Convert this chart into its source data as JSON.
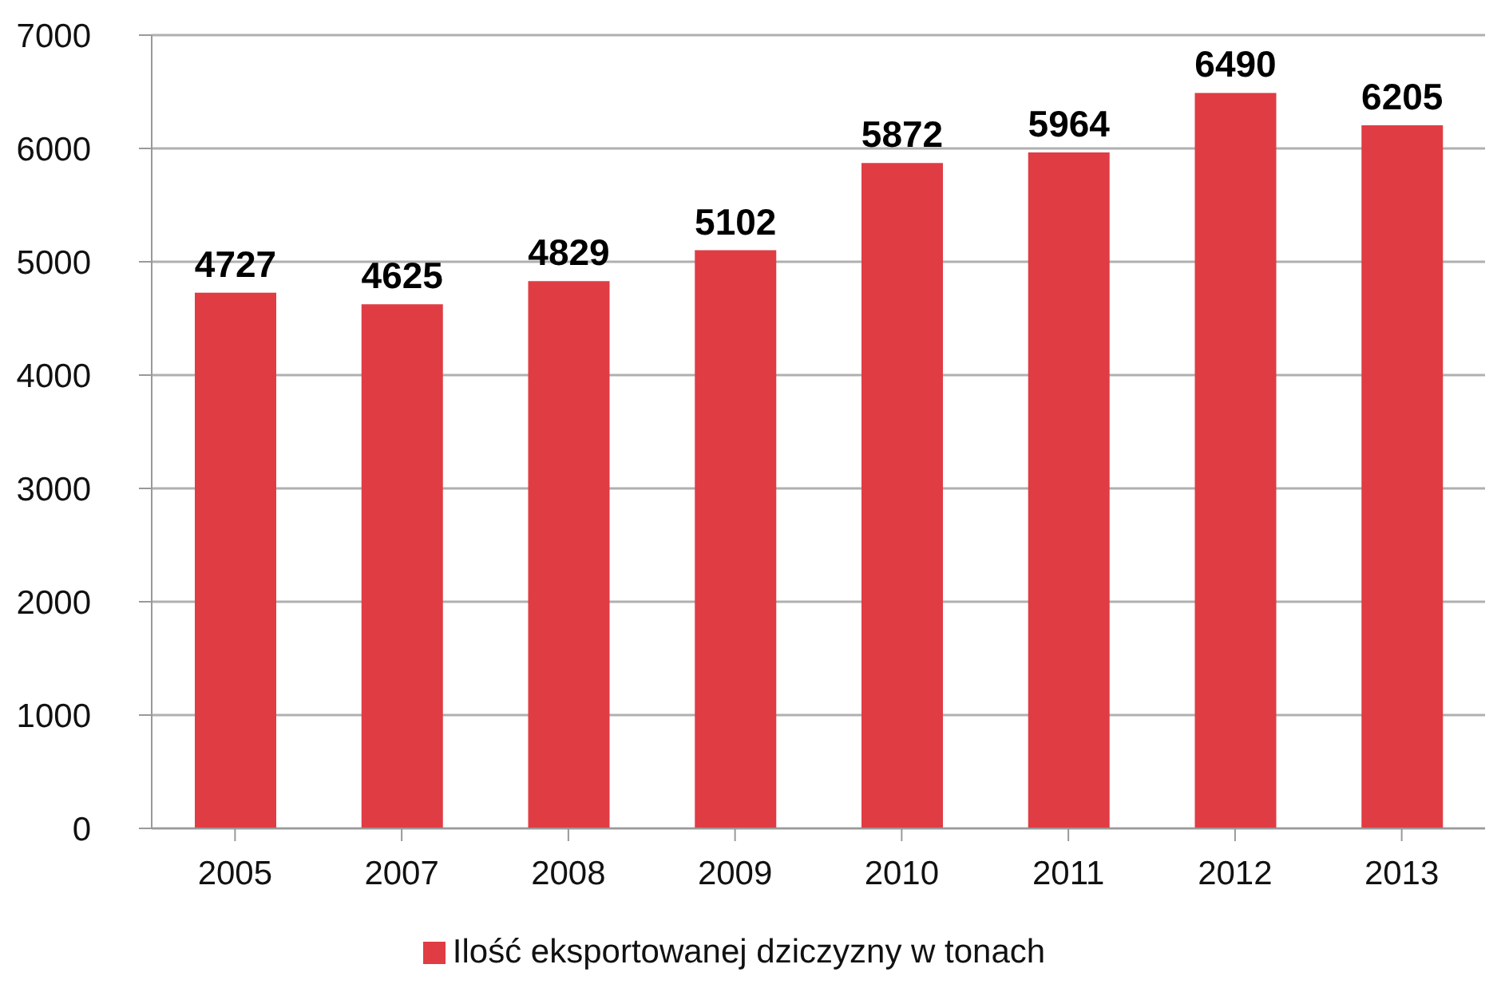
{
  "chart_data": {
    "type": "bar",
    "categories": [
      "2005",
      "2007",
      "2008",
      "2009",
      "2010",
      "2011",
      "2012",
      "2013"
    ],
    "series": [
      {
        "name": "Ilość eksportowanej dziczyzny w tonach",
        "color": "#e03c44",
        "values": [
          4727,
          4625,
          4829,
          5102,
          5872,
          5964,
          6490,
          6205
        ]
      }
    ],
    "ylim": [
      0,
      7000
    ],
    "yticks": [
      0,
      1000,
      2000,
      3000,
      4000,
      5000,
      6000,
      7000
    ],
    "grid": "y",
    "legend": "bottom",
    "data_labels": true
  }
}
